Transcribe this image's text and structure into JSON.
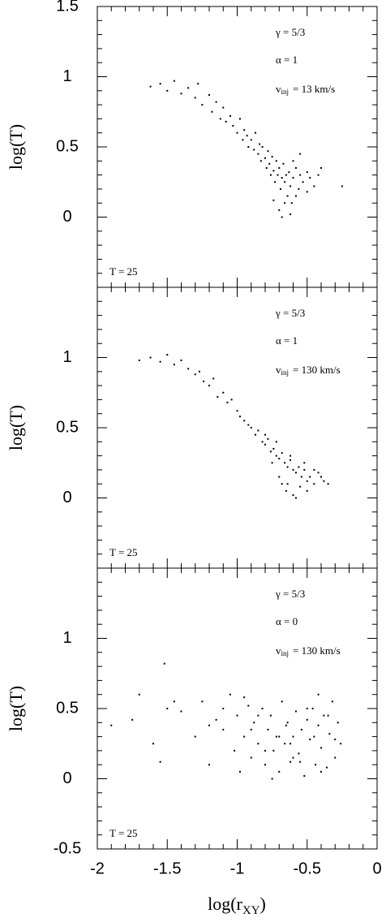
{
  "chart_data": [
    {
      "type": "scatter",
      "ylabel": "log(T)",
      "annotations": [
        "γ = 5/3",
        "α = 1"
      ],
      "velocity": {
        "symbol": "v",
        "subscript": "inj",
        "text": "= 13 km/s"
      },
      "corner_note": "T = 25",
      "xlim": [
        -2,
        0
      ],
      "xticks": [
        -2,
        -1.5,
        -1,
        -0.5,
        0
      ],
      "show_xticklabels": false,
      "ylim": [
        -0.5,
        1.5
      ],
      "yticks": [
        0,
        0.5,
        1,
        1.5
      ],
      "xminorticks": [
        -1.9,
        -1.8,
        -1.7,
        -1.6,
        -1.4,
        -1.3,
        -1.2,
        -1.1,
        -0.9,
        -0.8,
        -0.7,
        -0.6,
        -0.4,
        -0.3,
        -0.2,
        -0.1
      ],
      "yminorticks": [
        -0.4,
        -0.3,
        -0.2,
        -0.1,
        0.1,
        0.2,
        0.3,
        0.4,
        0.6,
        0.7,
        0.8,
        0.9,
        1.1,
        1.2,
        1.3,
        1.4
      ],
      "color": "#000000",
      "x": [
        -1.62,
        -1.55,
        -1.5,
        -1.45,
        -1.4,
        -1.35,
        -1.3,
        -1.28,
        -1.25,
        -1.2,
        -1.18,
        -1.15,
        -1.12,
        -1.1,
        -1.08,
        -1.05,
        -1.03,
        -1.0,
        -0.98,
        -0.96,
        -0.95,
        -0.93,
        -0.92,
        -0.9,
        -0.88,
        -0.87,
        -0.85,
        -0.84,
        -0.83,
        -0.82,
        -0.8,
        -0.79,
        -0.78,
        -0.77,
        -0.76,
        -0.75,
        -0.74,
        -0.73,
        -0.72,
        -0.71,
        -0.7,
        -0.69,
        -0.68,
        -0.67,
        -0.66,
        -0.65,
        -0.64,
        -0.63,
        -0.62,
        -0.61,
        -0.6,
        -0.58,
        -0.56,
        -0.55,
        -0.53,
        -0.5,
        -0.48,
        -0.45,
        -0.42,
        -0.4,
        -0.7,
        -0.66,
        -0.62,
        -0.58,
        -0.74,
        -0.6,
        -0.55,
        -0.68,
        -0.5,
        -0.25
      ],
      "values": [
        0.93,
        0.95,
        0.9,
        0.97,
        0.88,
        0.92,
        0.85,
        0.95,
        0.8,
        0.87,
        0.75,
        0.82,
        0.7,
        0.78,
        0.68,
        0.72,
        0.65,
        0.6,
        0.7,
        0.55,
        0.62,
        0.58,
        0.5,
        0.55,
        0.48,
        0.6,
        0.45,
        0.52,
        0.4,
        0.5,
        0.42,
        0.35,
        0.47,
        0.38,
        0.3,
        0.43,
        0.33,
        0.25,
        0.4,
        0.3,
        0.35,
        0.2,
        0.28,
        0.38,
        0.25,
        0.3,
        0.15,
        0.32,
        0.22,
        0.1,
        0.28,
        0.35,
        0.2,
        0.3,
        0.25,
        0.32,
        0.28,
        0.22,
        0.3,
        0.35,
        0.05,
        0.1,
        0.02,
        0.15,
        0.12,
        0.4,
        0.45,
        0.0,
        0.18,
        0.22
      ]
    },
    {
      "type": "scatter",
      "ylabel": "log(T)",
      "annotations": [
        "γ = 5/3",
        "α = 1"
      ],
      "velocity": {
        "symbol": "v",
        "subscript": "inj",
        "text": "= 130 km/s"
      },
      "corner_note": "T = 25",
      "xlim": [
        -2,
        0
      ],
      "xticks": [
        -2,
        -1.5,
        -1,
        -0.5,
        0
      ],
      "show_xticklabels": false,
      "ylim": [
        -0.5,
        1.5
      ],
      "yticks": [
        0,
        0.5,
        1
      ],
      "xminorticks": [
        -1.9,
        -1.8,
        -1.7,
        -1.6,
        -1.4,
        -1.3,
        -1.2,
        -1.1,
        -0.9,
        -0.8,
        -0.7,
        -0.6,
        -0.4,
        -0.3,
        -0.2,
        -0.1
      ],
      "yminorticks": [
        -0.4,
        -0.3,
        -0.2,
        -0.1,
        0.1,
        0.2,
        0.3,
        0.4,
        0.6,
        0.7,
        0.8,
        0.9,
        1.1,
        1.2,
        1.3,
        1.4
      ],
      "color": "#000000",
      "x": [
        -1.7,
        -1.62,
        -1.55,
        -1.5,
        -1.45,
        -1.4,
        -1.35,
        -1.3,
        -1.27,
        -1.24,
        -1.2,
        -1.17,
        -1.14,
        -1.1,
        -1.07,
        -1.04,
        -1.0,
        -0.98,
        -0.95,
        -0.92,
        -0.9,
        -0.87,
        -0.85,
        -0.82,
        -0.8,
        -0.78,
        -0.76,
        -0.74,
        -0.72,
        -0.7,
        -0.68,
        -0.66,
        -0.64,
        -0.62,
        -0.6,
        -0.58,
        -0.56,
        -0.54,
        -0.52,
        -0.5,
        -0.48,
        -0.45,
        -0.42,
        -0.38,
        -0.35,
        -0.7,
        -0.65,
        -0.6,
        -0.55,
        -0.5,
        -0.75,
        -0.68,
        -0.62,
        -0.58,
        -0.45,
        -0.8,
        -0.72,
        -0.64,
        -0.52,
        -0.4
      ],
      "values": [
        0.98,
        1.0,
        0.97,
        1.02,
        0.95,
        0.98,
        0.92,
        0.88,
        0.9,
        0.83,
        0.8,
        0.85,
        0.72,
        0.75,
        0.68,
        0.7,
        0.62,
        0.58,
        0.55,
        0.52,
        0.5,
        0.45,
        0.48,
        0.4,
        0.38,
        0.42,
        0.33,
        0.35,
        0.3,
        0.28,
        0.32,
        0.25,
        0.22,
        0.27,
        0.2,
        0.18,
        0.22,
        0.15,
        0.2,
        0.12,
        0.15,
        0.1,
        0.18,
        0.12,
        0.1,
        0.15,
        0.05,
        0.02,
        0.08,
        0.05,
        0.25,
        0.1,
        0.3,
        0.0,
        0.2,
        0.45,
        0.4,
        0.1,
        0.25,
        0.15
      ]
    },
    {
      "type": "scatter",
      "ylabel": "log(T)",
      "annotations": [
        "γ = 5/3",
        "α = 0"
      ],
      "velocity": {
        "symbol": "v",
        "subscript": "inj",
        "text": "= 130 km/s"
      },
      "corner_note": "T = 25",
      "xlabel": {
        "text": "log(r",
        "subscript": "XY",
        "suffix": ")"
      },
      "xlim": [
        -2,
        0
      ],
      "xticks": [
        -2,
        -1.5,
        -1,
        -0.5,
        0
      ],
      "show_xticklabels": true,
      "ylim": [
        -0.5,
        1.5
      ],
      "yticks": [
        -0.5,
        0,
        0.5,
        1
      ],
      "xminorticks": [
        -1.9,
        -1.8,
        -1.7,
        -1.6,
        -1.4,
        -1.3,
        -1.2,
        -1.1,
        -0.9,
        -0.8,
        -0.7,
        -0.6,
        -0.4,
        -0.3,
        -0.2,
        -0.1
      ],
      "yminorticks": [
        -0.4,
        -0.3,
        -0.2,
        -0.1,
        0.1,
        0.2,
        0.3,
        0.4,
        0.6,
        0.7,
        0.8,
        0.9,
        1.1,
        1.2,
        1.3,
        1.4
      ],
      "color": "#000000",
      "x": [
        -1.9,
        -1.75,
        -1.7,
        -1.6,
        -1.55,
        -1.52,
        -1.5,
        -1.45,
        -1.4,
        -1.3,
        -1.25,
        -1.2,
        -1.15,
        -1.1,
        -1.05,
        -1.02,
        -1.0,
        -0.98,
        -0.95,
        -0.92,
        -0.9,
        -0.88,
        -0.85,
        -0.82,
        -0.8,
        -0.78,
        -0.76,
        -0.74,
        -0.72,
        -0.7,
        -0.68,
        -0.66,
        -0.64,
        -0.62,
        -0.6,
        -0.58,
        -0.56,
        -0.54,
        -0.52,
        -0.5,
        -0.48,
        -0.46,
        -0.44,
        -0.42,
        -0.4,
        -0.38,
        -0.36,
        -0.34,
        -0.32,
        -0.3,
        -0.28,
        -0.26,
        -0.9,
        -0.8,
        -0.7,
        -0.6,
        -0.5,
        -0.4,
        -0.3,
        -0.85,
        -0.75,
        -0.65,
        -0.55,
        -0.45,
        -0.35,
        -1.1,
        -1.2,
        -0.95,
        -0.62,
        -0.42
      ],
      "values": [
        0.38,
        0.42,
        0.6,
        0.25,
        0.12,
        0.82,
        0.5,
        0.55,
        0.48,
        0.3,
        0.55,
        0.1,
        0.42,
        0.35,
        0.6,
        0.2,
        0.45,
        0.05,
        0.3,
        0.52,
        0.15,
        0.4,
        0.25,
        0.5,
        0.1,
        0.35,
        0.45,
        0.2,
        0.3,
        0.05,
        0.55,
        0.25,
        0.4,
        0.12,
        0.3,
        0.48,
        0.18,
        0.35,
        0.02,
        0.42,
        0.28,
        0.5,
        0.1,
        0.38,
        0.22,
        0.45,
        0.08,
        0.32,
        0.55,
        0.15,
        0.4,
        0.25,
        0.35,
        0.2,
        0.3,
        0.15,
        0.5,
        0.05,
        0.28,
        0.45,
        0.0,
        0.38,
        0.12,
        0.3,
        0.45,
        0.5,
        0.38,
        0.58,
        0.25,
        0.6
      ]
    }
  ]
}
